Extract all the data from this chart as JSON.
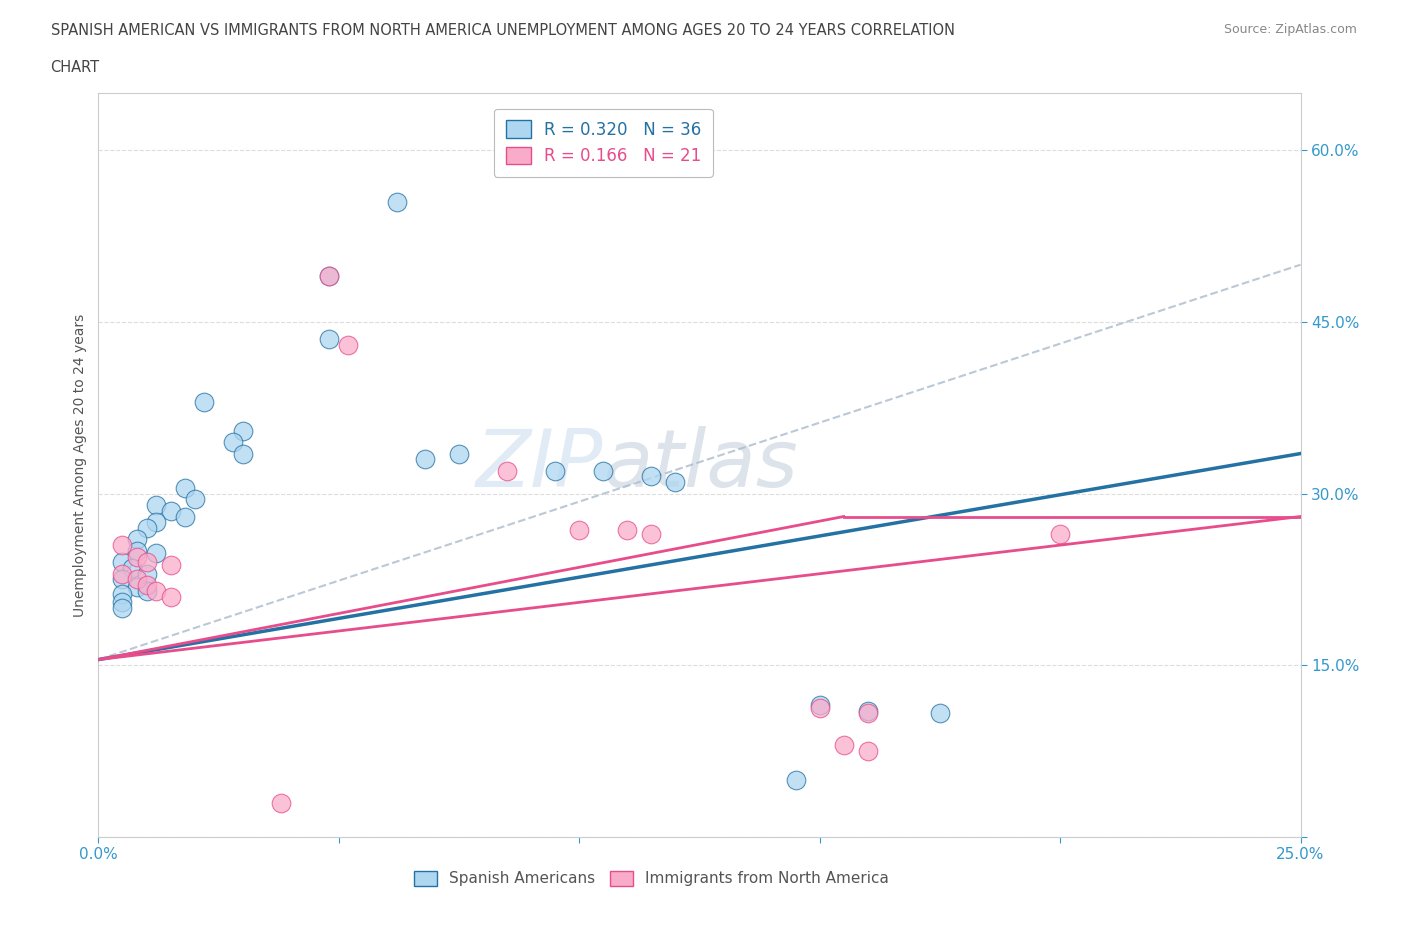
{
  "title_line1": "SPANISH AMERICAN VS IMMIGRANTS FROM NORTH AMERICA UNEMPLOYMENT AMONG AGES 20 TO 24 YEARS CORRELATION",
  "title_line2": "CHART",
  "source": "Source: ZipAtlas.com",
  "ylabel": "Unemployment Among Ages 20 to 24 years",
  "xlim": [
    0.0,
    0.25
  ],
  "ylim": [
    0.0,
    0.65
  ],
  "xticks": [
    0.0,
    0.05,
    0.1,
    0.15,
    0.2,
    0.25
  ],
  "xticklabels": [
    "0.0%",
    "",
    "",
    "",
    "",
    "25.0%"
  ],
  "yticks": [
    0.0,
    0.15,
    0.3,
    0.45,
    0.6
  ],
  "yticklabels": [
    "",
    "15.0%",
    "30.0%",
    "45.0%",
    "60.0%"
  ],
  "R_blue": 0.32,
  "N_blue": 36,
  "R_pink": 0.166,
  "N_pink": 21,
  "watermark_zip": "ZIP",
  "watermark_atlas": "atlas",
  "blue_color": "#AED6F1",
  "pink_color": "#F9ACCA",
  "blue_line_color": "#2471A3",
  "pink_line_color": "#E74C8B",
  "dashed_line_color": "#AABBCC",
  "blue_scatter": [
    [
      0.062,
      0.555
    ],
    [
      0.048,
      0.49
    ],
    [
      0.048,
      0.435
    ],
    [
      0.022,
      0.38
    ],
    [
      0.03,
      0.355
    ],
    [
      0.028,
      0.345
    ],
    [
      0.03,
      0.335
    ],
    [
      0.068,
      0.33
    ],
    [
      0.075,
      0.335
    ],
    [
      0.095,
      0.32
    ],
    [
      0.105,
      0.32
    ],
    [
      0.115,
      0.315
    ],
    [
      0.12,
      0.31
    ],
    [
      0.018,
      0.305
    ],
    [
      0.02,
      0.295
    ],
    [
      0.012,
      0.29
    ],
    [
      0.015,
      0.285
    ],
    [
      0.018,
      0.28
    ],
    [
      0.012,
      0.275
    ],
    [
      0.01,
      0.27
    ],
    [
      0.008,
      0.26
    ],
    [
      0.008,
      0.25
    ],
    [
      0.012,
      0.248
    ],
    [
      0.005,
      0.24
    ],
    [
      0.007,
      0.235
    ],
    [
      0.01,
      0.23
    ],
    [
      0.005,
      0.225
    ],
    [
      0.008,
      0.218
    ],
    [
      0.01,
      0.215
    ],
    [
      0.005,
      0.212
    ],
    [
      0.005,
      0.205
    ],
    [
      0.005,
      0.2
    ],
    [
      0.15,
      0.115
    ],
    [
      0.16,
      0.11
    ],
    [
      0.175,
      0.108
    ],
    [
      0.145,
      0.05
    ]
  ],
  "pink_scatter": [
    [
      0.048,
      0.49
    ],
    [
      0.052,
      0.43
    ],
    [
      0.085,
      0.32
    ],
    [
      0.1,
      0.268
    ],
    [
      0.11,
      0.268
    ],
    [
      0.115,
      0.265
    ],
    [
      0.2,
      0.265
    ],
    [
      0.005,
      0.255
    ],
    [
      0.008,
      0.245
    ],
    [
      0.01,
      0.24
    ],
    [
      0.015,
      0.238
    ],
    [
      0.005,
      0.23
    ],
    [
      0.008,
      0.225
    ],
    [
      0.01,
      0.22
    ],
    [
      0.012,
      0.215
    ],
    [
      0.015,
      0.21
    ],
    [
      0.15,
      0.113
    ],
    [
      0.16,
      0.108
    ],
    [
      0.155,
      0.08
    ],
    [
      0.16,
      0.075
    ],
    [
      0.038,
      0.03
    ]
  ]
}
